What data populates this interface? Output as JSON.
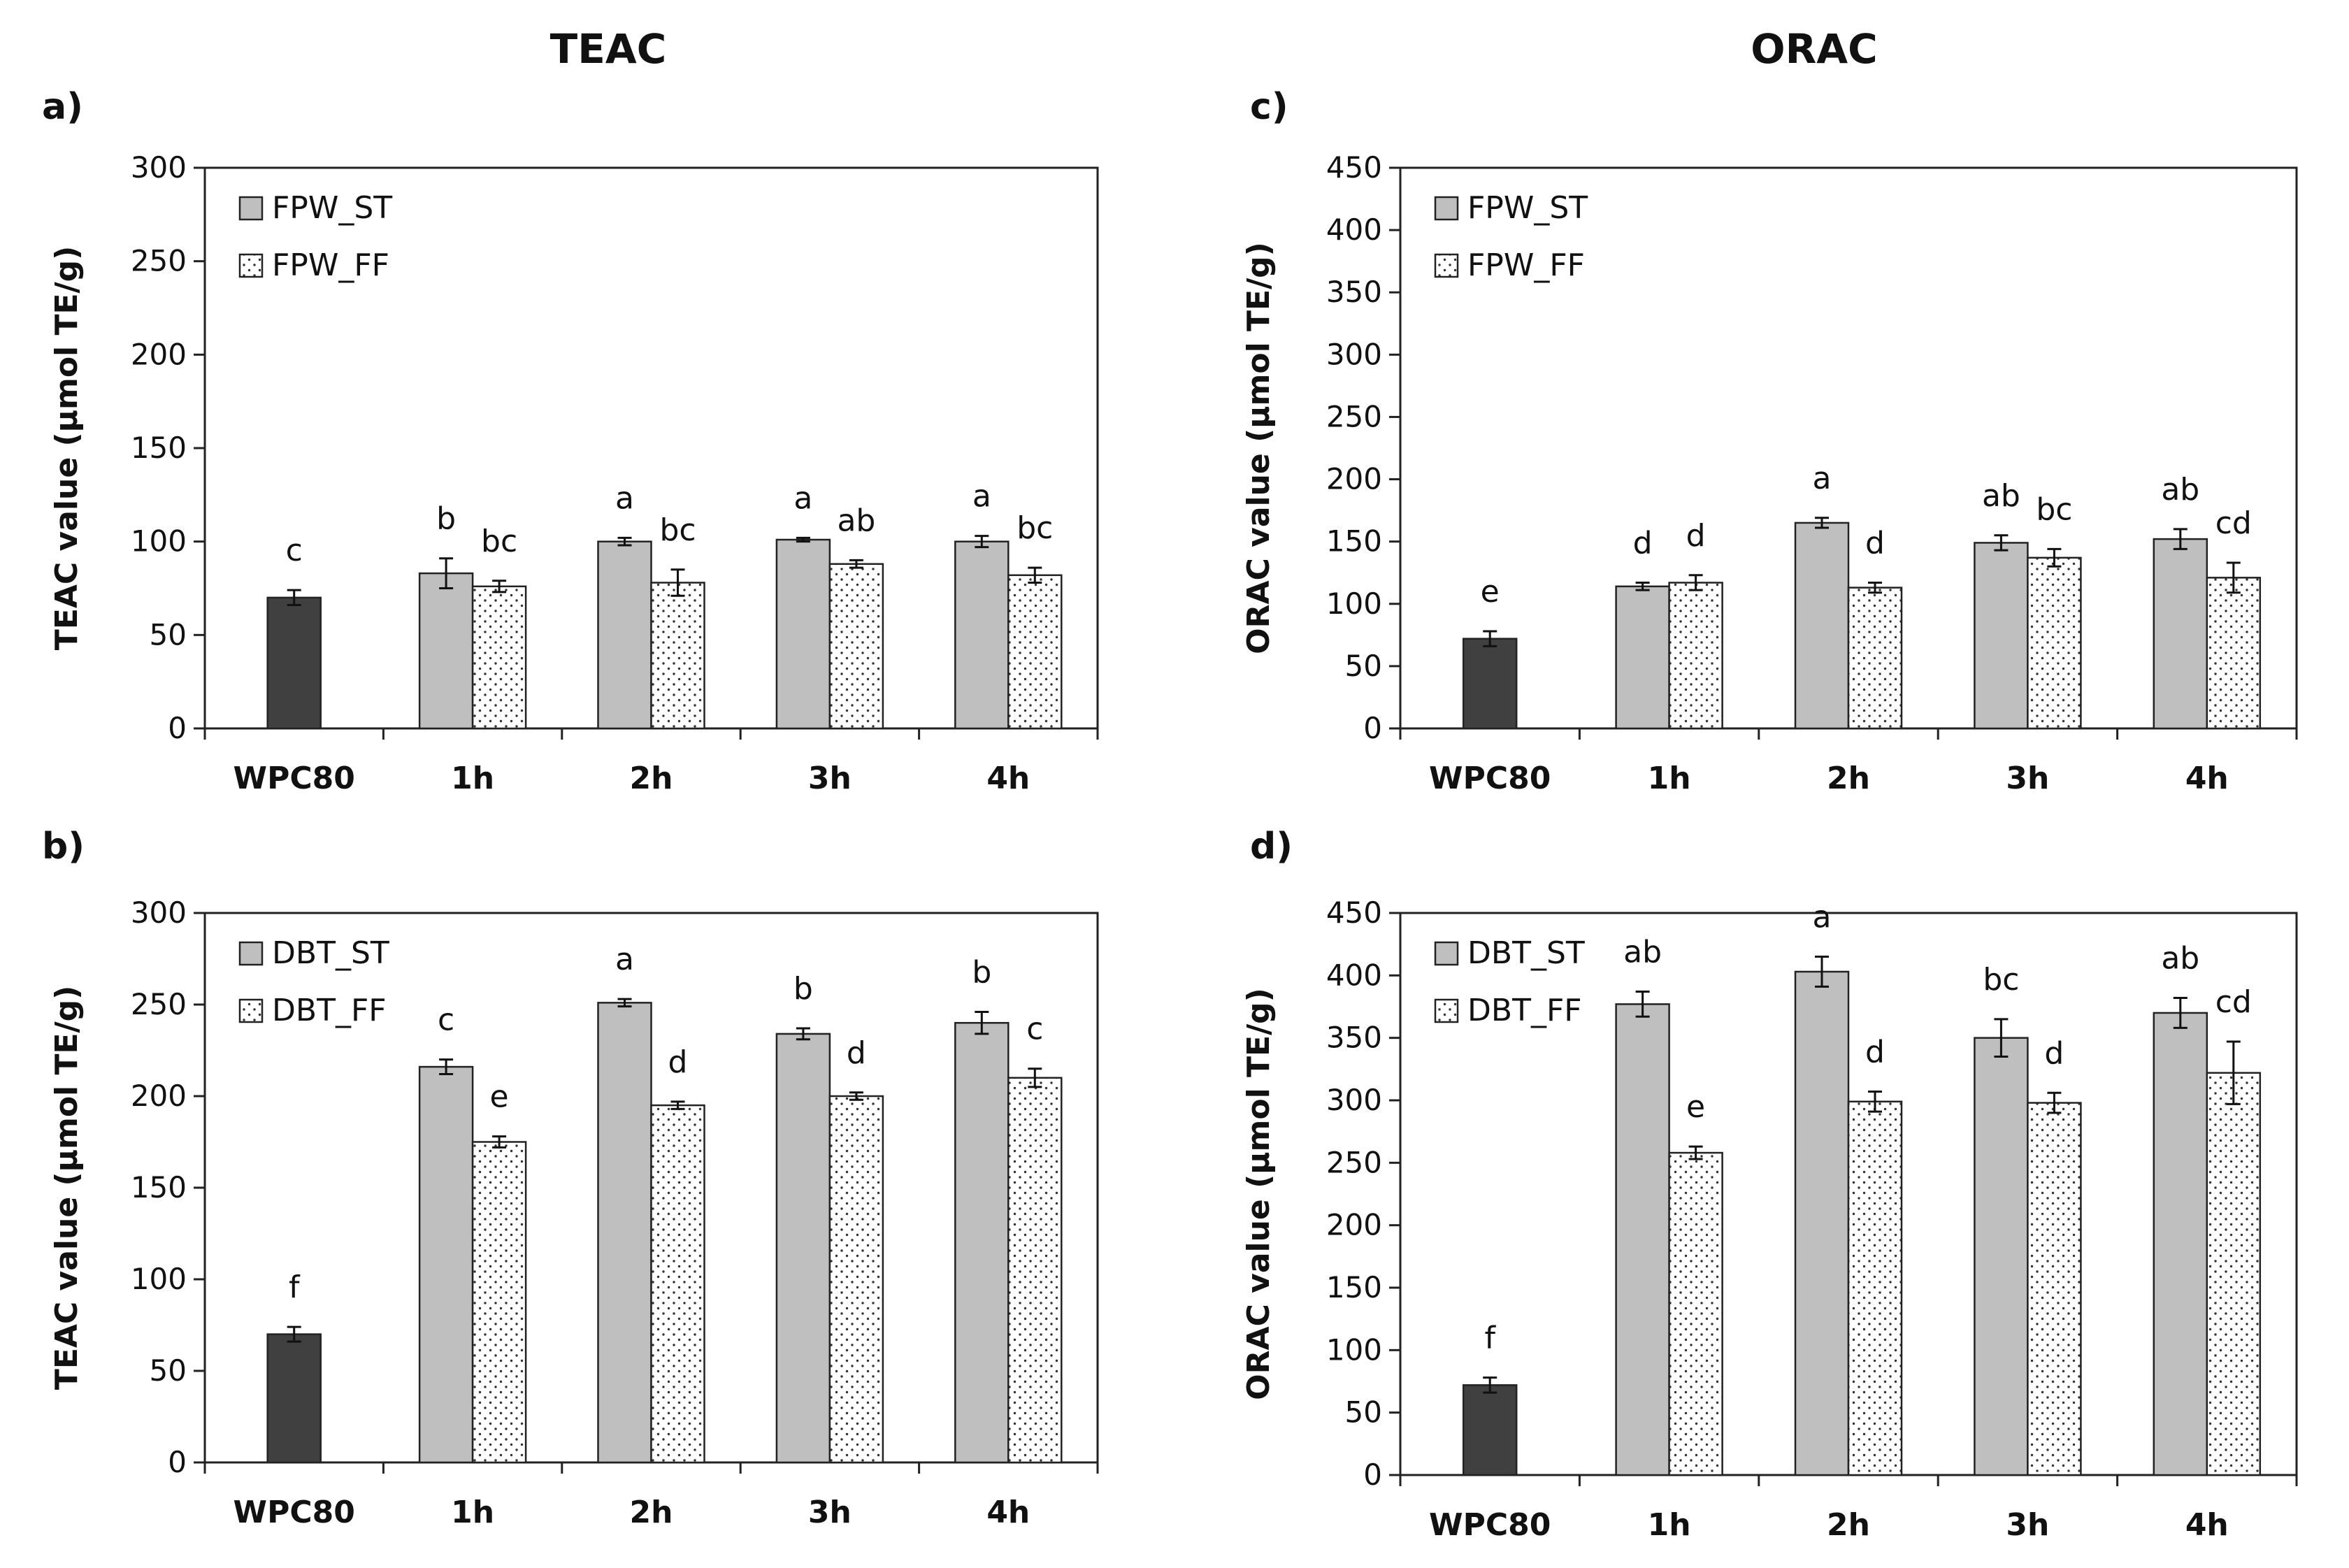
{
  "column_titles": {
    "left": "TEAC",
    "right": "ORAC"
  },
  "chart_data": [
    {
      "id": "a",
      "type": "bar",
      "panel_label": "a)",
      "title": "",
      "ylabel": "TEAC value (µmol TE/g)",
      "ylim": [
        0,
        300
      ],
      "yticks": [
        0,
        50,
        100,
        150,
        200,
        250,
        300
      ],
      "categories": [
        "WPC80",
        "1h",
        "2h",
        "3h",
        "4h"
      ],
      "legend_position": "top-left",
      "control": {
        "name": "WPC80",
        "value": 70,
        "error": 4,
        "label": "c",
        "color": "#404040"
      },
      "series": [
        {
          "name": "FPW_ST",
          "pattern": "solid-gray",
          "values": [
            null,
            83,
            100,
            101,
            100
          ],
          "errors": [
            null,
            8,
            2,
            1,
            3
          ],
          "labels": [
            null,
            "b",
            "a",
            "a",
            "a"
          ]
        },
        {
          "name": "FPW_FF",
          "pattern": "dotted",
          "values": [
            null,
            76,
            78,
            88,
            82
          ],
          "errors": [
            null,
            3,
            7,
            2,
            4
          ],
          "labels": [
            null,
            "bc",
            "bc",
            "ab",
            "bc"
          ]
        }
      ]
    },
    {
      "id": "b",
      "type": "bar",
      "panel_label": "b)",
      "title": "",
      "ylabel": "TEAC value (µmol TE/g)",
      "ylim": [
        0,
        300
      ],
      "yticks": [
        0,
        50,
        100,
        150,
        200,
        250,
        300
      ],
      "categories": [
        "WPC80",
        "1h",
        "2h",
        "3h",
        "4h"
      ],
      "legend_position": "top-left",
      "control": {
        "name": "WPC80",
        "value": 70,
        "error": 4,
        "label": "f",
        "color": "#404040"
      },
      "series": [
        {
          "name": "DBT_ST",
          "pattern": "solid-gray",
          "values": [
            null,
            216,
            251,
            234,
            240
          ],
          "errors": [
            null,
            4,
            2,
            3,
            6
          ],
          "labels": [
            null,
            "c",
            "a",
            "b",
            "b"
          ]
        },
        {
          "name": "DBT_FF",
          "pattern": "dotted",
          "values": [
            null,
            175,
            195,
            200,
            210
          ],
          "errors": [
            null,
            3,
            2,
            2,
            5
          ],
          "labels": [
            null,
            "e",
            "d",
            "d",
            "c"
          ]
        }
      ]
    },
    {
      "id": "c",
      "type": "bar",
      "panel_label": "c)",
      "title": "",
      "ylabel": "ORAC value (µmol TE/g)",
      "ylim": [
        0,
        450
      ],
      "yticks": [
        0,
        50,
        100,
        150,
        200,
        250,
        300,
        350,
        400,
        450
      ],
      "categories": [
        "WPC80",
        "1h",
        "2h",
        "3h",
        "4h"
      ],
      "legend_position": "top-left",
      "control": {
        "name": "WPC80",
        "value": 72,
        "error": 6,
        "label": "e",
        "color": "#404040"
      },
      "series": [
        {
          "name": "FPW_ST",
          "pattern": "solid-gray",
          "values": [
            null,
            114,
            165,
            149,
            152
          ],
          "errors": [
            null,
            3,
            4,
            6,
            8
          ],
          "labels": [
            null,
            "d",
            "a",
            "ab",
            "ab"
          ]
        },
        {
          "name": "FPW_FF",
          "pattern": "dotted",
          "values": [
            null,
            117,
            113,
            137,
            121
          ],
          "errors": [
            null,
            6,
            4,
            7,
            12
          ],
          "labels": [
            null,
            "d",
            "d",
            "bc",
            "cd"
          ]
        }
      ]
    },
    {
      "id": "d",
      "type": "bar",
      "panel_label": "d)",
      "title": "",
      "ylabel": "ORAC value (µmol TE/g)",
      "ylim": [
        0,
        450
      ],
      "yticks": [
        0,
        50,
        100,
        150,
        200,
        250,
        300,
        350,
        400,
        450
      ],
      "categories": [
        "WPC80",
        "1h",
        "2h",
        "3h",
        "4h"
      ],
      "legend_position": "top-left",
      "control": {
        "name": "WPC80",
        "value": 72,
        "error": 6,
        "label": "f",
        "color": "#404040"
      },
      "series": [
        {
          "name": "DBT_ST",
          "pattern": "solid-gray",
          "values": [
            null,
            377,
            403,
            350,
            370
          ],
          "errors": [
            null,
            10,
            12,
            15,
            12
          ],
          "labels": [
            null,
            "ab",
            "a",
            "bc",
            "ab"
          ]
        },
        {
          "name": "DBT_FF",
          "pattern": "dotted",
          "values": [
            null,
            258,
            299,
            298,
            322
          ],
          "errors": [
            null,
            5,
            8,
            8,
            25
          ],
          "labels": [
            null,
            "e",
            "d",
            "d",
            "cd"
          ]
        }
      ]
    }
  ]
}
